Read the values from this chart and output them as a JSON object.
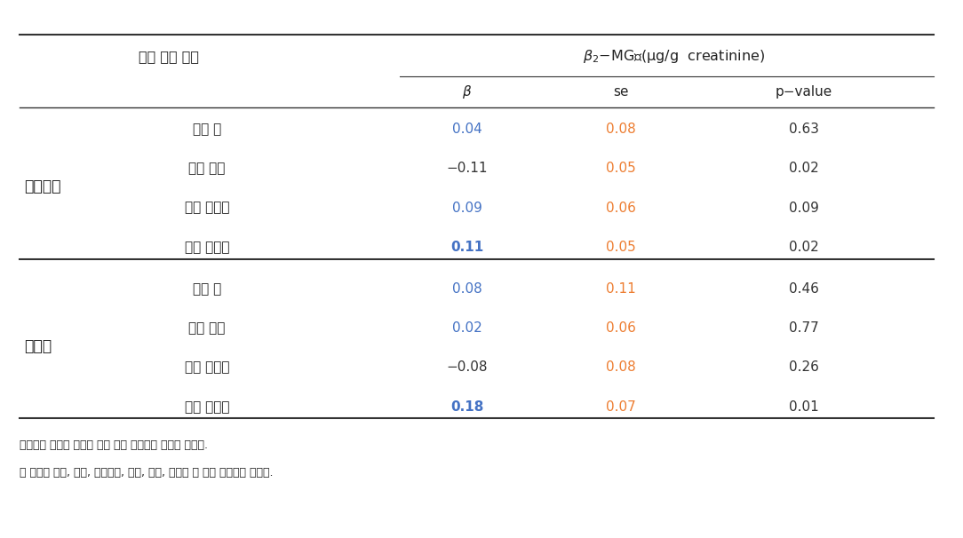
{
  "col_header_left": "흥연 상태 층화",
  "col_headers": [
    "β",
    "se",
    "p−value"
  ],
  "groups": [
    {
      "group_label": "비흥연자",
      "rows": [
        {
          "metal": "혁중 납",
          "beta": "0.04",
          "se": "0.08",
          "pvalue": "0.63",
          "beta_color": "#4472C4",
          "se_color": "#ED7D31",
          "pvalue_color": "#333333"
        },
        {
          "metal": "혁중 수은",
          "beta": "−0.11",
          "se": "0.05",
          "pvalue": "0.02",
          "beta_color": "#333333",
          "se_color": "#ED7D31",
          "pvalue_color": "#333333"
        },
        {
          "metal": "혁중 카드뭈",
          "beta": "0.09",
          "se": "0.06",
          "pvalue": "0.09",
          "beta_color": "#4472C4",
          "se_color": "#ED7D31",
          "pvalue_color": "#333333"
        },
        {
          "metal": "요중 카드뭈",
          "beta": "0.11",
          "se": "0.05",
          "pvalue": "0.02",
          "beta_color": "#4472C4",
          "se_color": "#ED7D31",
          "pvalue_color": "#333333"
        }
      ]
    },
    {
      "group_label": "흥연자",
      "rows": [
        {
          "metal": "혁중 납",
          "beta": "0.08",
          "se": "0.11",
          "pvalue": "0.46",
          "beta_color": "#4472C4",
          "se_color": "#ED7D31",
          "pvalue_color": "#333333"
        },
        {
          "metal": "혁중 수은",
          "beta": "0.02",
          "se": "0.06",
          "pvalue": "0.77",
          "beta_color": "#4472C4",
          "se_color": "#ED7D31",
          "pvalue_color": "#333333"
        },
        {
          "metal": "혁중 카드뭈",
          "beta": "−0.08",
          "se": "0.08",
          "pvalue": "0.26",
          "beta_color": "#333333",
          "se_color": "#ED7D31",
          "pvalue_color": "#333333"
        },
        {
          "metal": "요중 카드뭈",
          "beta": "0.18",
          "se": "0.07",
          "pvalue": "0.01",
          "beta_color": "#4472C4",
          "se_color": "#ED7D31",
          "pvalue_color": "#333333"
        }
      ]
    }
  ],
  "footnotes": [
    "중금속과 신기능 수치는 자연 로그 변환하여 모형에 적용함.",
    "자 모형은 성별, 연령, 조사기간, 소득, 음주, 고혁압 및 당롼 과거력이 보정됨."
  ],
  "background_color": "#FFFFFF",
  "text_color": "#222222",
  "line_color": "#333333",
  "bold_beta_values": [
    "0.11",
    "0.18"
  ]
}
